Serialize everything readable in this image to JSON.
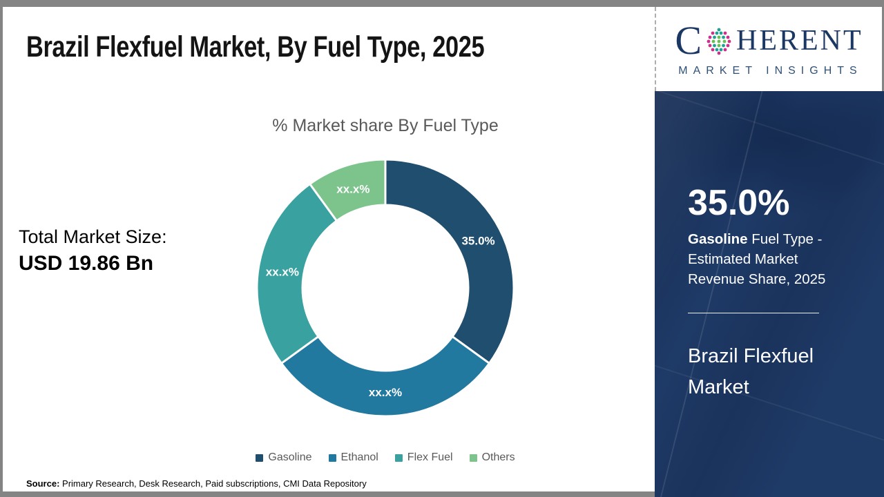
{
  "header": {
    "title": "Brazil Flexfuel Market, By Fuel Type, 2025"
  },
  "logo": {
    "prefix": "C",
    "suffix": "HERENT",
    "subtitle": "MARKET INSIGHTS",
    "colors": {
      "navy": "#1b3764",
      "teal": "#1fa095",
      "green": "#66bf4e",
      "magenta": "#c9318c"
    }
  },
  "left_panel": {
    "label": "Total Market Size:",
    "value": "USD 19.86 Bn"
  },
  "chart_data": {
    "type": "pie",
    "donut": true,
    "title": "% Market share By Fuel Type",
    "categories": [
      "Gasoline",
      "Ethanol",
      "Flex Fuel",
      "Others"
    ],
    "values": [
      35.0,
      30.0,
      25.0,
      10.0
    ],
    "labels": [
      "35.0%",
      "xx.x%",
      "xx.x%",
      "xx.x%"
    ],
    "colors": [
      "#1f4e6e",
      "#2279a0",
      "#3aa1a1",
      "#7cc48c"
    ],
    "label_color": "#ffffff",
    "legend_position": "bottom",
    "start_angle_deg": 0
  },
  "sidebar": {
    "stat_value": "35.0%",
    "desc_bold": " Gasoline",
    "desc_rest": " Fuel Type - Estimated Market Revenue Share, 2025",
    "title": "Brazil Flexfuel Market",
    "bg_color": "#1e3a66",
    "text_color": "#ffffff"
  },
  "footer": {
    "source_label": "Source:",
    "source_text": " Primary Research, Desk Research, Paid subscriptions, CMI Data Repository"
  }
}
